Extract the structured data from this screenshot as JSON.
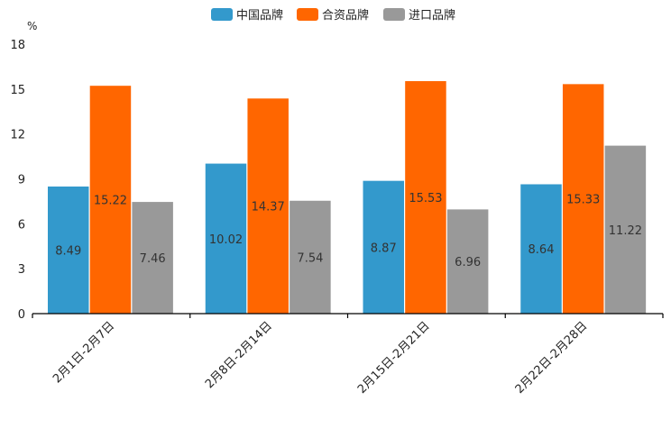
{
  "chart_data": {
    "type": "bar",
    "unit_label": "%",
    "categories": [
      "2月1日-2月7日",
      "2月8日-2月14日",
      "2月15日-2月21日",
      "2月22日-2月28日"
    ],
    "series": [
      {
        "name": "中国品牌",
        "color": "#3399cc",
        "values": [
          8.49,
          10.02,
          8.87,
          8.64
        ],
        "labels": [
          "8.49",
          "10.02",
          "8.87",
          "8.64"
        ]
      },
      {
        "name": "合资品牌",
        "color": "#ff6600",
        "values": [
          15.22,
          14.37,
          15.53,
          15.33
        ],
        "labels": [
          "15.22",
          "14.37",
          "15.53",
          "15.33"
        ]
      },
      {
        "name": "进口品牌",
        "color": "#999999",
        "values": [
          7.46,
          7.54,
          6.96,
          11.22
        ],
        "labels": [
          "7.46",
          "7.54",
          "6.96",
          "11.22"
        ]
      }
    ],
    "yticks": [
      "0",
      "3",
      "6",
      "9",
      "12",
      "15",
      "18"
    ],
    "ylim": [
      0,
      18
    ],
    "legend_position": "top-center",
    "grid": false
  }
}
